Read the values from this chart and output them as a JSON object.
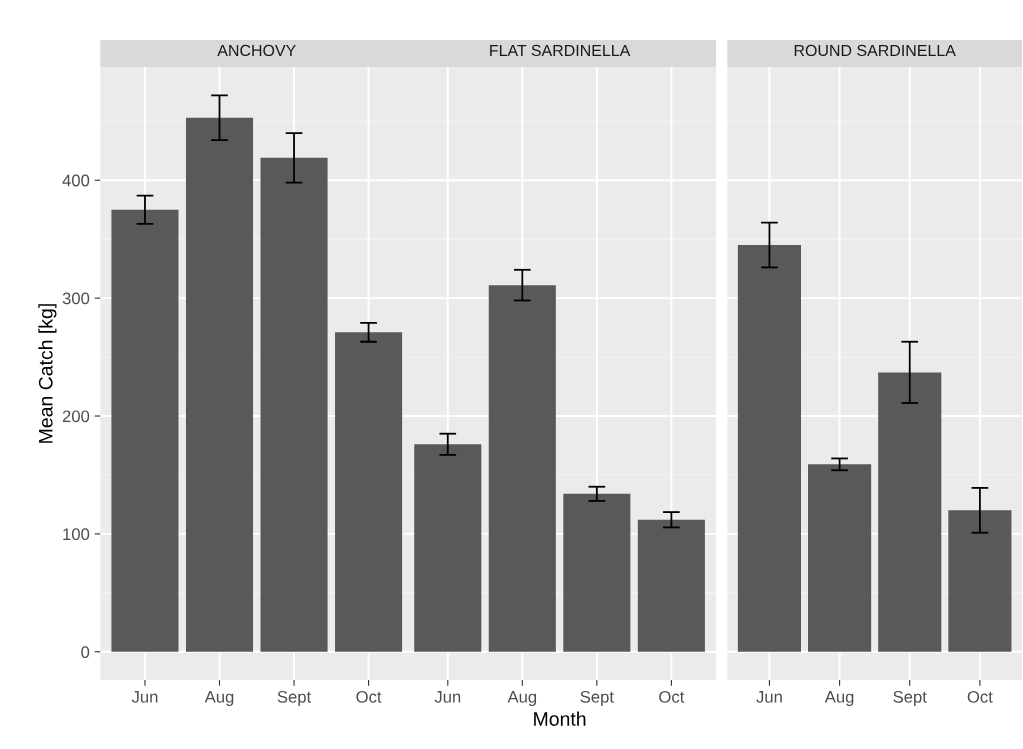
{
  "chart_data": [
    {
      "type": "bar",
      "title": "ANCHOVY",
      "ylabel": "Mean Catch [kg]",
      "categories": [
        "Jun",
        "Aug",
        "Sept",
        "Oct"
      ],
      "values": [
        375,
        453,
        419,
        271
      ],
      "errors": [
        12,
        19,
        21,
        8
      ],
      "color": "#595959",
      "ylim": [
        -24,
        496
      ],
      "yticks": [
        0,
        100,
        200,
        300,
        400
      ],
      "grid": true
    },
    {
      "type": "bar",
      "title": "FLAT SARDINELLA",
      "xlabel": "Month",
      "categories": [
        "Jun",
        "Aug",
        "Sept",
        "Oct"
      ],
      "values": [
        176,
        311,
        134,
        112
      ],
      "errors": [
        9,
        13,
        6,
        6.5
      ],
      "color": "#595959",
      "ylim": [
        -24,
        496
      ],
      "yticks": [
        0,
        100,
        200,
        300,
        400
      ],
      "grid": true,
      "tick_labels": "x"
    },
    {
      "type": "bar",
      "title": "ROUND SARDINELLA",
      "categories": [
        "Jun",
        "Aug",
        "Sept",
        "Oct"
      ],
      "values": [
        345,
        159,
        237,
        120
      ],
      "errors": [
        19,
        5,
        26,
        19
      ],
      "color": "#595959",
      "ylim": [
        -24,
        496
      ],
      "yticks": [
        0,
        100,
        200,
        300,
        400
      ],
      "grid": true,
      "tick_labels": "x"
    }
  ]
}
